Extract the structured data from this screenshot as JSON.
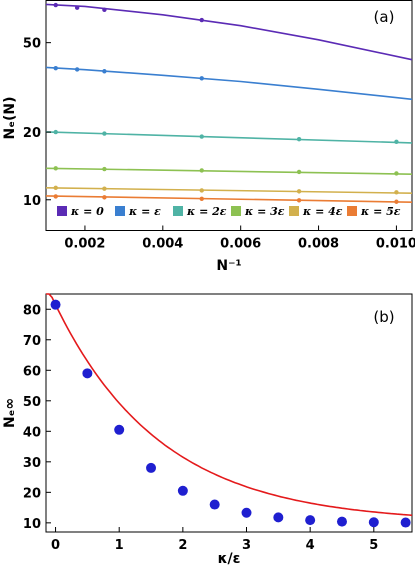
{
  "chart_data": [
    {
      "panel": "(a)",
      "type": "line",
      "xlabel": "N⁻¹",
      "ylabel": "Nₑ(N)",
      "y_scale": "log",
      "xlim": [
        0.001,
        0.0104
      ],
      "ylim": [
        7.3,
        77
      ],
      "x_ticks": [
        0.002,
        0.004,
        0.006,
        0.008,
        0.01
      ],
      "x_tick_labels": [
        "0.002",
        "0.004",
        "0.006",
        "0.008",
        "0.010"
      ],
      "y_ticks": [
        10,
        20,
        50
      ],
      "y_tick_labels": [
        "10",
        "20",
        "50"
      ],
      "grid": false,
      "legend_position": "bottom",
      "series": [
        {
          "name": "κ = 0",
          "color": "#5b2bb5",
          "points": [
            [
              0.00125,
              73.5
            ],
            [
              0.0018,
              71.5
            ],
            [
              0.0025,
              70.0
            ],
            [
              0.005,
              63.0
            ]
          ],
          "fit": [
            [
              0.001,
              74.0
            ],
            [
              0.002,
              72.5
            ],
            [
              0.004,
              66.5
            ],
            [
              0.006,
              59.5
            ],
            [
              0.008,
              51.5
            ],
            [
              0.0104,
              42.0
            ]
          ]
        },
        {
          "name": "κ = ε",
          "color": "#3a7fd0",
          "points": [
            [
              0.00125,
              38.5
            ],
            [
              0.0018,
              38.0
            ],
            [
              0.0025,
              37.3
            ],
            [
              0.005,
              34.7
            ]
          ],
          "fit": [
            [
              0.001,
              38.8
            ],
            [
              0.002,
              37.9
            ],
            [
              0.004,
              35.8
            ],
            [
              0.006,
              33.6
            ],
            [
              0.008,
              31.0
            ],
            [
              0.0104,
              28.0
            ]
          ]
        },
        {
          "name": "κ = 2ε",
          "color": "#4fb3a5",
          "points": [
            [
              0.00125,
              20.0
            ],
            [
              0.0025,
              19.7
            ],
            [
              0.005,
              19.1
            ],
            [
              0.0075,
              18.6
            ],
            [
              0.01,
              18.1
            ]
          ],
          "fit": [
            [
              0.001,
              20.05
            ],
            [
              0.0104,
              17.9
            ]
          ]
        },
        {
          "name": "κ = 3ε",
          "color": "#8dc152",
          "points": [
            [
              0.00125,
              13.8
            ],
            [
              0.0025,
              13.7
            ],
            [
              0.005,
              13.5
            ],
            [
              0.0075,
              13.3
            ],
            [
              0.01,
              13.1
            ]
          ],
          "fit": [
            [
              0.001,
              13.8
            ],
            [
              0.0104,
              13.0
            ]
          ]
        },
        {
          "name": "κ = 4ε",
          "color": "#d2b04d",
          "points": [
            [
              0.00125,
              11.3
            ],
            [
              0.0025,
              11.2
            ],
            [
              0.005,
              11.0
            ],
            [
              0.0075,
              10.9
            ],
            [
              0.01,
              10.8
            ]
          ],
          "fit": [
            [
              0.001,
              11.3
            ],
            [
              0.0104,
              10.7
            ]
          ]
        },
        {
          "name": "κ = 5ε",
          "color": "#ea7c34",
          "points": [
            [
              0.00125,
              10.35
            ],
            [
              0.0025,
              10.25
            ],
            [
              0.005,
              10.1
            ],
            [
              0.0075,
              9.95
            ],
            [
              0.01,
              9.8
            ]
          ],
          "fit": [
            [
              0.001,
              10.4
            ],
            [
              0.0104,
              9.75
            ]
          ]
        }
      ]
    },
    {
      "panel": "(b)",
      "type": "scatter",
      "xlabel": "κ/ε",
      "ylabel": "Nₑ∞",
      "xlim": [
        -0.15,
        5.6
      ],
      "ylim": [
        7,
        85
      ],
      "x_ticks": [
        0,
        1,
        2,
        3,
        4,
        5
      ],
      "x_tick_labels": [
        "0",
        "1",
        "2",
        "3",
        "4",
        "5"
      ],
      "y_ticks": [
        10,
        20,
        30,
        40,
        50,
        60,
        70,
        80
      ],
      "y_tick_labels": [
        "10",
        "20",
        "30",
        "40",
        "50",
        "60",
        "70",
        "80"
      ],
      "grid": false,
      "point_color": "#1f1fd0",
      "fit_color": "#e41a1c",
      "points": [
        [
          0,
          81.5
        ],
        [
          0.5,
          59.0
        ],
        [
          1.0,
          40.5
        ],
        [
          1.5,
          28.0
        ],
        [
          2.0,
          20.5
        ],
        [
          2.5,
          16.0
        ],
        [
          3.0,
          13.3
        ],
        [
          3.5,
          11.8
        ],
        [
          4.0,
          10.9
        ],
        [
          4.5,
          10.4
        ],
        [
          5.0,
          10.2
        ],
        [
          5.5,
          10.1
        ]
      ],
      "fit_model": {
        "asymptote": 10.0,
        "amplitude": 71.5,
        "rate": 0.6
      }
    }
  ]
}
